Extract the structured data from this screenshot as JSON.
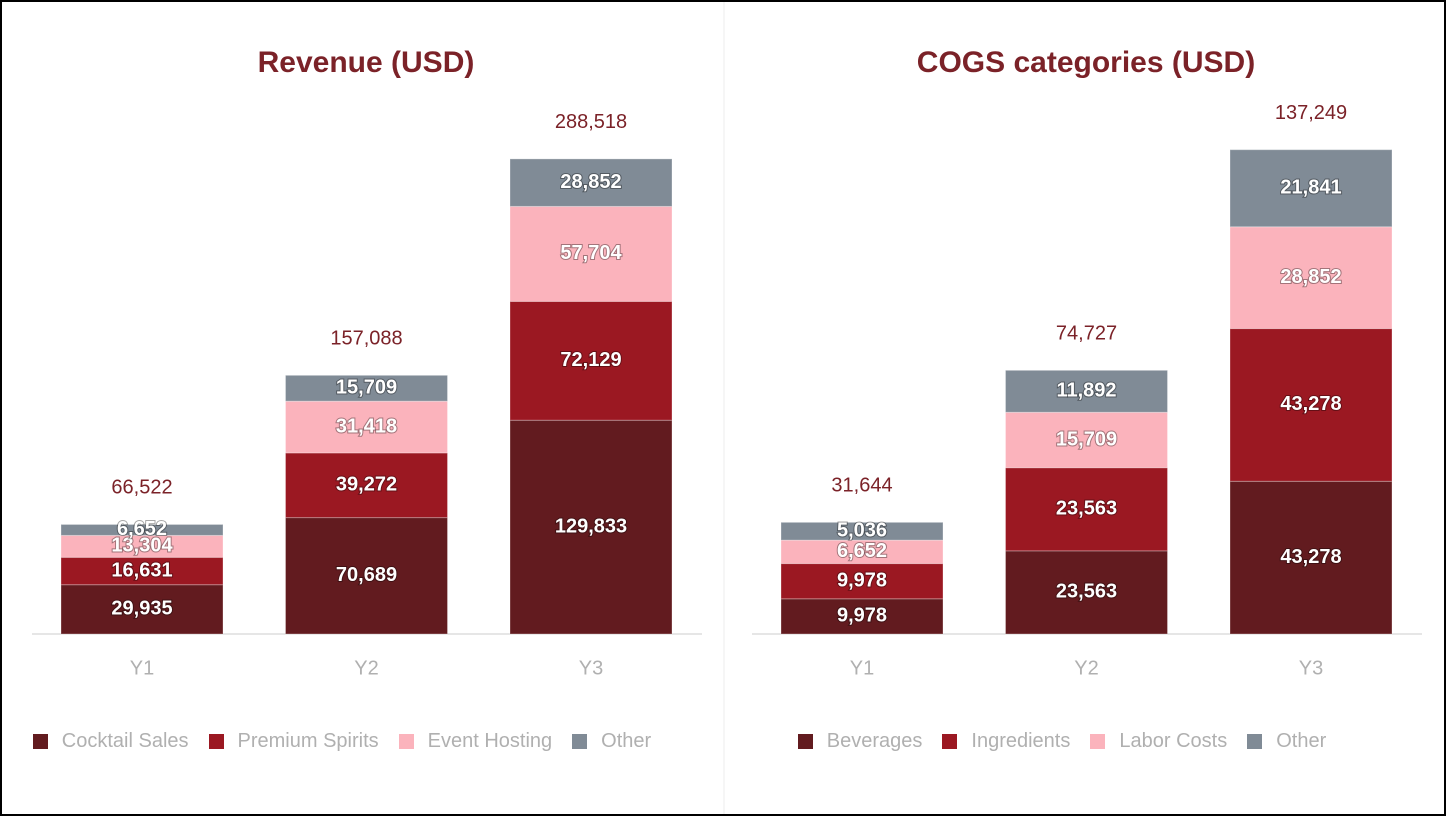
{
  "chart_data": [
    {
      "type": "stacked_bar",
      "title": "Revenue (USD)",
      "categories": [
        "Y1",
        "Y2",
        "Y3"
      ],
      "series": [
        {
          "name": "Cocktail Sales",
          "color": "#621b1f",
          "values": [
            29935,
            70689,
            129833
          ],
          "value_labels": [
            "29,935",
            "70,689",
            "129,833"
          ]
        },
        {
          "name": "Premium Spirits",
          "color": "#9b1822",
          "values": [
            16631,
            39272,
            72129
          ],
          "value_labels": [
            "16,631",
            "39,272",
            "72,129"
          ]
        },
        {
          "name": "Event Hosting",
          "color": "#fbb3bc",
          "values": [
            13304,
            31418,
            57704
          ],
          "value_labels": [
            "13,304",
            "31,418",
            "57,704"
          ]
        },
        {
          "name": "Other",
          "color": "#808b96",
          "values": [
            6652,
            15709,
            28852
          ],
          "value_labels": [
            "6,652",
            "15,709",
            "28,852"
          ]
        }
      ],
      "totals": [
        66522,
        157088,
        288518
      ],
      "total_labels": [
        "66,522",
        "157,088",
        "288,518"
      ],
      "ylim": [
        0,
        300000
      ],
      "legend": "bottom"
    },
    {
      "type": "stacked_bar",
      "title": "COGS categories (USD)",
      "categories": [
        "Y1",
        "Y2",
        "Y3"
      ],
      "series": [
        {
          "name": "Beverages",
          "color": "#621b1f",
          "values": [
            9978,
            23563,
            43278
          ],
          "value_labels": [
            "9,978",
            "23,563",
            "43,278"
          ]
        },
        {
          "name": "Ingredients",
          "color": "#9b1822",
          "values": [
            9978,
            23563,
            43278
          ],
          "value_labels": [
            "9,978",
            "23,563",
            "43,278"
          ]
        },
        {
          "name": "Labor Costs",
          "color": "#fbb3bc",
          "values": [
            6652,
            15709,
            28852
          ],
          "value_labels": [
            "6,652",
            "15,709",
            "28,852"
          ]
        },
        {
          "name": "Other",
          "color": "#808b96",
          "values": [
            5036,
            11892,
            21841
          ],
          "value_labels": [
            "5,036",
            "11,892",
            "21,841"
          ]
        }
      ],
      "totals": [
        31644,
        74727,
        137249
      ],
      "total_labels": [
        "31,644",
        "74,727",
        "137,249"
      ],
      "ylim": [
        0,
        140000
      ],
      "legend": "bottom"
    }
  ]
}
